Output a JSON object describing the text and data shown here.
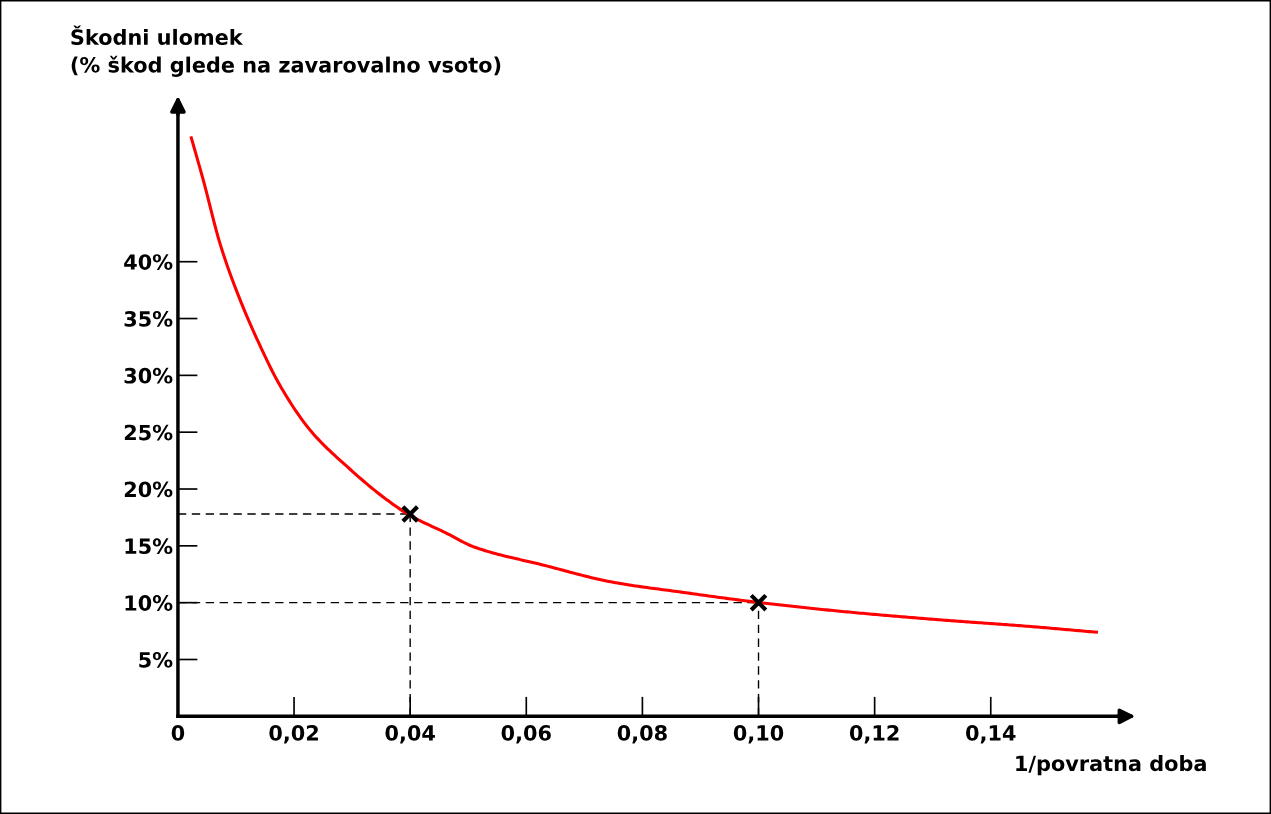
{
  "chart_data": {
    "type": "line",
    "xlabel": "1/povratna doba",
    "ylabel": "Škodni ulomek\n(% škod glede na zavarovalno vsoto)",
    "series": [
      {
        "type": "line",
        "color": "#ff0000",
        "marker": "none",
        "line_style": "solid",
        "x": [
          0.0023,
          0.0043,
          0.0073,
          0.0102,
          0.0137,
          0.0177,
          0.0229,
          0.0293,
          0.0356,
          0.0399,
          0.0463,
          0.051,
          0.063,
          0.0749,
          0.0871,
          0.1003,
          0.115,
          0.131,
          0.1469,
          0.1582
        ],
        "values": [
          50.9,
          47.3,
          41.5,
          37.3,
          33.1,
          29.0,
          25.1,
          21.9,
          19.2,
          17.7,
          16.1,
          14.9,
          13.3,
          11.8,
          10.9,
          10.0,
          9.2,
          8.5,
          7.9,
          7.4
        ]
      },
      {
        "type": "scatter",
        "color": "#000000",
        "marker": "cross",
        "x": [
          0.04,
          0.1
        ],
        "values": [
          17.8,
          10.0
        ]
      }
    ],
    "ref_lines": [
      {
        "axis": "x",
        "value": 0.04,
        "color": "#000000",
        "line_style": "dashed"
      },
      {
        "axis": "x",
        "value": 0.1,
        "color": "#000000",
        "line_style": "dashed"
      },
      {
        "axis": "y",
        "value": 17.8,
        "color": "#000000",
        "line_style": "dashed"
      },
      {
        "axis": "y",
        "value": 10.0,
        "color": "#000000",
        "line_style": "dashed"
      }
    ],
    "xlim": [
      0,
      0.162
    ],
    "ylim": [
      0,
      53
    ],
    "xticks": [
      {
        "value": 0,
        "label": "0"
      },
      {
        "value": 0.02,
        "label": "0,02"
      },
      {
        "value": 0.04,
        "label": "0,04"
      },
      {
        "value": 0.06,
        "label": "0,06"
      },
      {
        "value": 0.08,
        "label": "0,08"
      },
      {
        "value": 0.1,
        "label": "0,10"
      },
      {
        "value": 0.12,
        "label": "0,12"
      },
      {
        "value": 0.14,
        "label": "0,14"
      }
    ],
    "yticks": [
      {
        "value": 0,
        "label": null
      },
      {
        "value": 5,
        "label": "5%"
      },
      {
        "value": 10,
        "label": "10%"
      },
      {
        "value": 15,
        "label": "15%"
      },
      {
        "value": 20,
        "label": "20%"
      },
      {
        "value": 25,
        "label": "25%"
      },
      {
        "value": 30,
        "label": "30%"
      },
      {
        "value": 35,
        "label": "35%"
      },
      {
        "value": 40,
        "label": "40%"
      }
    ],
    "grid": false,
    "legend": false
  }
}
